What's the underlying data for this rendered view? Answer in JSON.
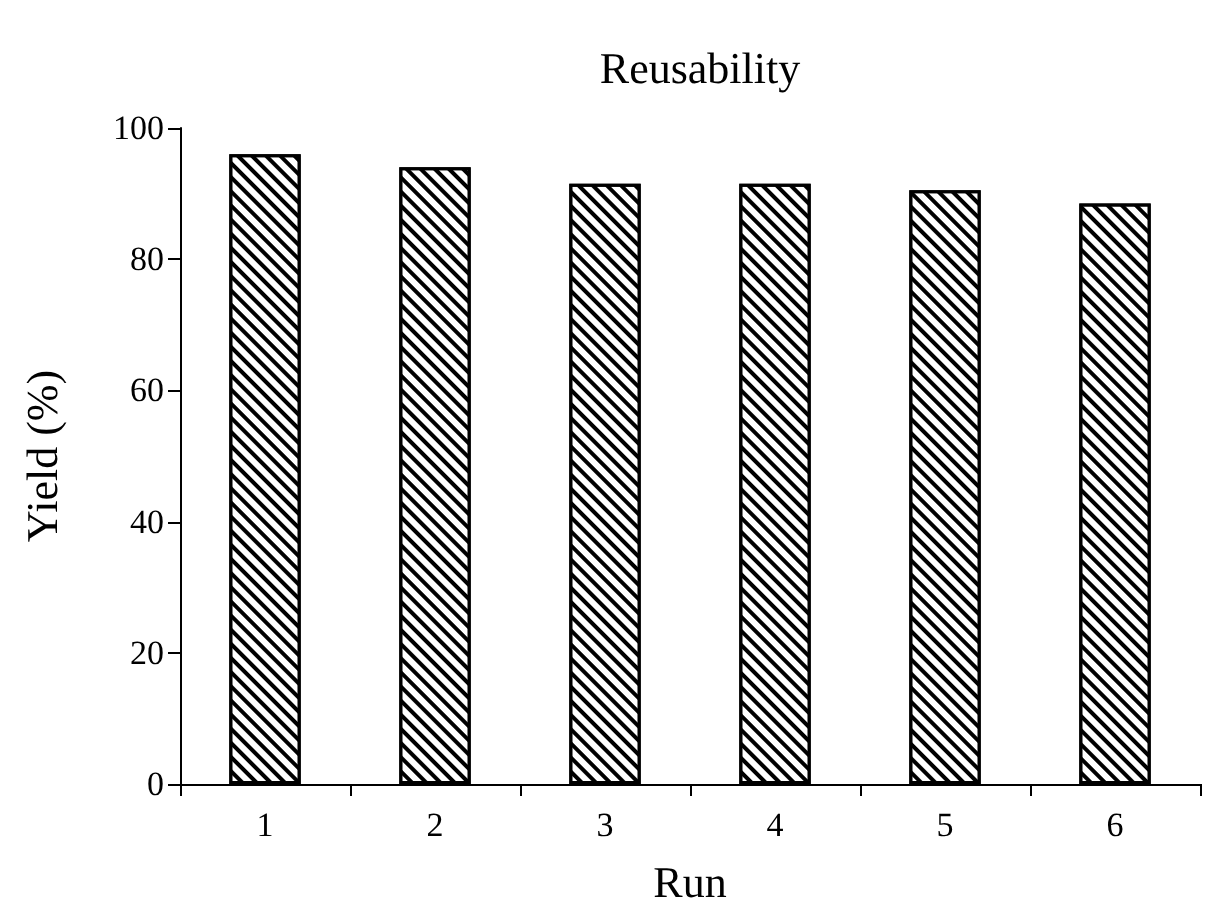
{
  "chart_data": {
    "type": "bar",
    "title": "Reusability",
    "xlabel": "Run",
    "ylabel": "Yield (%)",
    "categories": [
      "1",
      "2",
      "3",
      "4",
      "5",
      "6"
    ],
    "values": [
      96,
      94,
      91.5,
      91.5,
      90.5,
      88.5
    ],
    "color": "#000000",
    "ylim": [
      0,
      100
    ],
    "yticks": [
      0,
      20,
      40,
      60,
      80,
      100
    ],
    "grid": false
  }
}
